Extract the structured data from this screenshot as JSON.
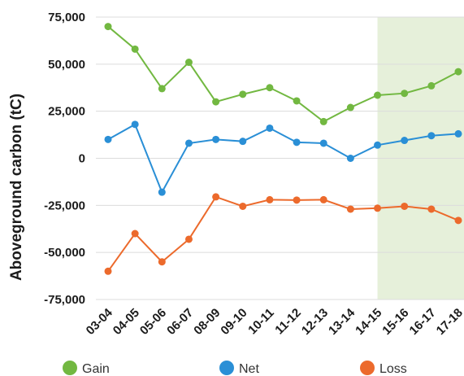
{
  "chart_data": {
    "type": "line",
    "ylabel": "Aboveground carbon (tC)",
    "xlabel": "",
    "categories": [
      "03-04",
      "04-05",
      "05-06",
      "06-07",
      "08-09",
      "09-10",
      "10-11",
      "11-12",
      "12-13",
      "13-14",
      "14-15",
      "15-16",
      "16-17",
      "17-18"
    ],
    "yticks": [
      "75,000",
      "50,000",
      "25,000",
      "0",
      "-25,000",
      "-50,000",
      "-75,000"
    ],
    "ylim": [
      -75000,
      75000
    ],
    "grid": true,
    "legend_position": "bottom",
    "highlight_range": [
      "14-15",
      "17-18"
    ],
    "highlight_color": "#e6f0da",
    "series": [
      {
        "name": "Gain",
        "color": "#72b841",
        "values": [
          70000,
          58000,
          37000,
          51000,
          30000,
          34000,
          37500,
          30500,
          19500,
          27000,
          33500,
          34500,
          38500,
          46000
        ]
      },
      {
        "name": "Net",
        "color": "#2a8fd6",
        "values": [
          10000,
          18000,
          -18000,
          8000,
          10000,
          9000,
          16000,
          8500,
          8000,
          0,
          7000,
          9500,
          12000,
          13000
        ]
      },
      {
        "name": "Loss",
        "color": "#ec6a2c",
        "values": [
          -60000,
          -40000,
          -55000,
          -43000,
          -20500,
          -25500,
          -22000,
          -22200,
          -22000,
          -27000,
          -26500,
          -25500,
          -27000,
          -33000
        ]
      }
    ]
  }
}
